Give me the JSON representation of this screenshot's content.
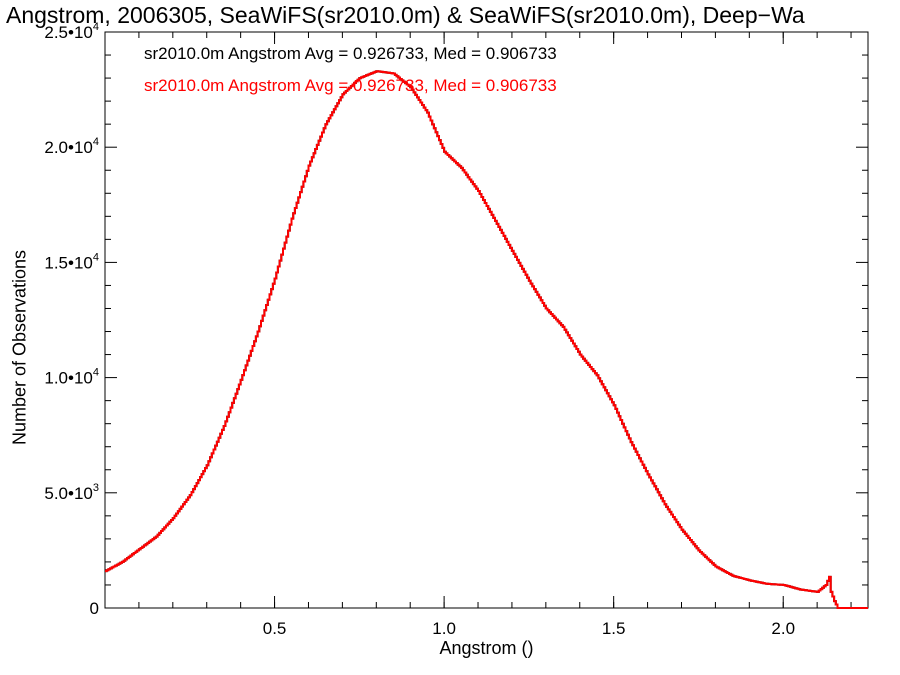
{
  "chart_data": {
    "type": "line",
    "title": "Angstrom, 2006305, SeaWiFS(sr2010.0m) & SeaWiFS(sr2010.0m), Deep−Wa",
    "xlabel": "Angstrom ()",
    "ylabel": "Number of Observations",
    "xlim": [
      0.0,
      2.25
    ],
    "ylim": [
      0,
      25000
    ],
    "x_ticks": [
      "0.5",
      "1.0",
      "1.5",
      "2.0"
    ],
    "x_tick_values": [
      0.5,
      1.0,
      1.5,
      2.0
    ],
    "y_ticks": [
      {
        "value": 0,
        "mantissa": "0",
        "exponent": ""
      },
      {
        "value": 5000,
        "mantissa": "5.0•10",
        "exponent": "3"
      },
      {
        "value": 10000,
        "mantissa": "1.0•10",
        "exponent": "4"
      },
      {
        "value": 15000,
        "mantissa": "1.5•10",
        "exponent": "4"
      },
      {
        "value": 20000,
        "mantissa": "2.0•10",
        "exponent": "4"
      },
      {
        "value": 25000,
        "mantissa": "2.5•10",
        "exponent": "4"
      }
    ],
    "grid": false,
    "legend_placement": "top-left",
    "series": [
      {
        "name": "sr2010.0m Angstrom Avg = 0.926733, Med = 0.906733",
        "color": "#000000",
        "x": [
          0.0,
          0.05,
          0.1,
          0.15,
          0.2,
          0.25,
          0.3,
          0.35,
          0.4,
          0.45,
          0.5,
          0.55,
          0.6,
          0.65,
          0.7,
          0.75,
          0.8,
          0.85,
          0.9,
          0.95,
          1.0,
          1.05,
          1.1,
          1.15,
          1.2,
          1.25,
          1.3,
          1.35,
          1.4,
          1.45,
          1.5,
          1.55,
          1.6,
          1.65,
          1.7,
          1.75,
          1.8,
          1.85,
          1.9,
          1.95,
          2.0,
          2.05,
          2.1,
          2.125,
          2.135,
          2.14,
          2.15,
          2.16,
          2.25
        ],
        "y": [
          1600,
          2000,
          2550,
          3100,
          3900,
          4900,
          6200,
          7900,
          9900,
          12000,
          14300,
          16900,
          19200,
          21000,
          22300,
          23000,
          23300,
          23200,
          22600,
          21500,
          19800,
          19100,
          18100,
          16800,
          15500,
          14200,
          13000,
          12200,
          11000,
          10100,
          8800,
          7200,
          5800,
          4500,
          3400,
          2500,
          1800,
          1400,
          1200,
          1050,
          1000,
          800,
          700,
          1000,
          1350,
          700,
          300,
          0,
          0
        ]
      },
      {
        "name": "sr2010.0m Angstrom Avg = 0.926733, Med = 0.906733",
        "color": "#ff0000",
        "x": [
          0.0,
          0.05,
          0.1,
          0.15,
          0.2,
          0.25,
          0.3,
          0.35,
          0.4,
          0.45,
          0.5,
          0.55,
          0.6,
          0.65,
          0.7,
          0.75,
          0.8,
          0.85,
          0.9,
          0.95,
          1.0,
          1.05,
          1.1,
          1.15,
          1.2,
          1.25,
          1.3,
          1.35,
          1.4,
          1.45,
          1.5,
          1.55,
          1.6,
          1.65,
          1.7,
          1.75,
          1.8,
          1.85,
          1.9,
          1.95,
          2.0,
          2.05,
          2.1,
          2.125,
          2.135,
          2.14,
          2.15,
          2.16,
          2.25
        ],
        "y": [
          1600,
          2000,
          2550,
          3100,
          3900,
          4900,
          6200,
          7900,
          9900,
          12000,
          14300,
          16900,
          19200,
          21000,
          22300,
          23000,
          23300,
          23200,
          22600,
          21500,
          19800,
          19100,
          18100,
          16800,
          15500,
          14200,
          13000,
          12200,
          11000,
          10100,
          8800,
          7200,
          5800,
          4500,
          3400,
          2500,
          1800,
          1400,
          1200,
          1050,
          1000,
          800,
          700,
          1000,
          1350,
          700,
          300,
          0,
          0
        ]
      }
    ]
  }
}
